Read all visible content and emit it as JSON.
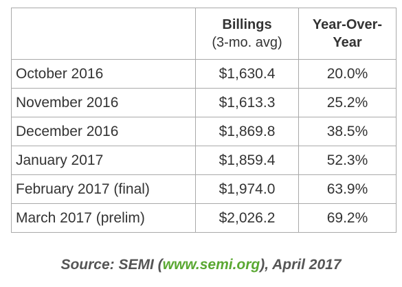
{
  "table": {
    "headers": {
      "month": "",
      "billings_title": "Billings",
      "billings_sub": "(3-mo. avg)",
      "yoy_line1": "Year-Over-",
      "yoy_line2": "Year"
    },
    "rows": [
      {
        "month": "October 2016",
        "billings": "$1,630.4",
        "yoy": "20.0%"
      },
      {
        "month": "November 2016",
        "billings": "$1,613.3",
        "yoy": "25.2%"
      },
      {
        "month": "December 2016",
        "billings": "$1,869.8",
        "yoy": "38.5%"
      },
      {
        "month": "January 2017",
        "billings": "$1,859.4",
        "yoy": "52.3%"
      },
      {
        "month": "February 2017 (final)",
        "billings": "$1,974.0",
        "yoy": "63.9%"
      },
      {
        "month": "March 2017 (prelim)",
        "billings": "$2,026.2",
        "yoy": "69.2%"
      }
    ]
  },
  "source": {
    "prefix": "Source: SEMI (",
    "link": "www.semi.org",
    "suffix": "), April 2017"
  },
  "colors": {
    "text": "#333333",
    "border": "#a9a9a9",
    "link": "#5aa832",
    "source_text": "#555555"
  }
}
